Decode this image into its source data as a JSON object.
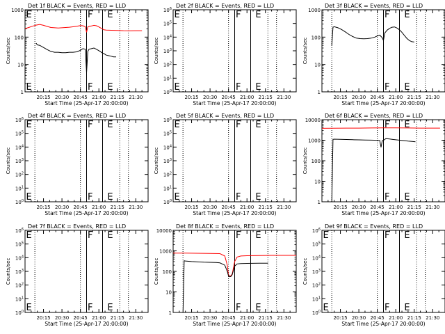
{
  "chart_data": [
    {
      "type": "line",
      "title": "Det 1f BLACK = Events, RED = LLD",
      "xlabel": "Start Time (25-Apr-17 20:00:00)",
      "ylabel": "Counts/sec",
      "log_y": true,
      "xlim_minutes": [
        0,
        100
      ],
      "ylim": [
        1,
        1000
      ],
      "y_ticks": [
        "1",
        "10",
        "100",
        "1000"
      ],
      "x_ticks": [
        "20:15",
        "20:30",
        "20:45",
        "21:00",
        "21:15",
        "21:30"
      ],
      "markers": [
        {
          "label": "E",
          "minute": 0
        },
        {
          "label": "F",
          "minute": 50
        },
        {
          "label": "E",
          "minute": 66
        }
      ],
      "dotted_lines_minutes": [
        8,
        45,
        77,
        84
      ],
      "solid_lines_minutes": [
        50,
        63
      ],
      "series": [
        {
          "color": "#ff0000",
          "t": [
            0,
            3,
            6,
            9,
            12,
            15,
            18,
            21,
            24,
            27,
            30,
            33,
            36,
            39,
            42,
            45,
            47,
            49,
            50,
            51,
            52,
            54,
            56,
            58,
            60,
            62,
            63,
            64,
            66,
            70,
            75,
            80,
            85,
            90,
            95
          ],
          "values": [
            205,
            225,
            250,
            275,
            290,
            270,
            245,
            225,
            220,
            215,
            220,
            225,
            230,
            238,
            248,
            265,
            260,
            240,
            150,
            235,
            245,
            255,
            270,
            260,
            235,
            210,
            200,
            185,
            180,
            178,
            176,
            172,
            170,
            172,
            172
          ]
        },
        {
          "color": "#000000",
          "t": [
            9,
            10,
            12,
            15,
            18,
            21,
            24,
            27,
            30,
            33,
            36,
            39,
            42,
            45,
            47,
            49,
            50,
            51,
            52,
            54,
            56,
            58,
            60,
            62,
            63,
            64,
            66,
            68,
            70,
            72,
            74
          ],
          "values": [
            60,
            52,
            50,
            42,
            35,
            30,
            28,
            28,
            27,
            27,
            28,
            28,
            29,
            33,
            38,
            36,
            5,
            30,
            36,
            38,
            40,
            36,
            32,
            28,
            26,
            25,
            22,
            21,
            20,
            19,
            19
          ]
        }
      ]
    },
    {
      "type": "line",
      "title": "Det 2f BLACK = Events, RED = LLD",
      "xlabel": "Start Time (25-Apr-17 20:00:00)",
      "ylabel": "Counts/sec",
      "log_y": true,
      "xlim_minutes": [
        0,
        100
      ],
      "ylim_exp": [
        0,
        6
      ],
      "y_ticks_exp": [
        "0",
        "1",
        "2",
        "3",
        "4",
        "5",
        "6"
      ],
      "x_ticks": [
        "20:15",
        "20:30",
        "20:45",
        "21:00",
        "21:15",
        "21:30"
      ],
      "markers": [
        {
          "label": "E",
          "minute": 0
        },
        {
          "label": "F",
          "minute": 50
        },
        {
          "label": "E",
          "minute": 66
        }
      ],
      "dotted_lines_minutes": [
        8,
        45,
        77,
        84
      ],
      "solid_lines_minutes": [
        50,
        63
      ],
      "series": []
    },
    {
      "type": "line",
      "title": "Det 3f BLACK = Events, RED = LLD",
      "xlabel": "Start Time (25-Apr-17 20:00:00)",
      "ylabel": "Counts/sec",
      "log_y": true,
      "xlim_minutes": [
        0,
        100
      ],
      "ylim": [
        1,
        1000
      ],
      "y_ticks": [
        "1",
        "10",
        "100",
        "1000"
      ],
      "x_ticks": [
        "20:15",
        "20:30",
        "20:45",
        "21:00",
        "21:15",
        "21:30"
      ],
      "markers": [
        {
          "label": "F",
          "minute": 50
        },
        {
          "label": "E",
          "minute": 66
        }
      ],
      "dotted_lines_minutes": [
        8,
        45,
        77,
        84
      ],
      "solid_lines_minutes": [
        50,
        63
      ],
      "series": [
        {
          "color": "#000000",
          "t": [
            8,
            9,
            10,
            13,
            16,
            19,
            22,
            25,
            28,
            31,
            34,
            37,
            40,
            43,
            45,
            47,
            49,
            50,
            51,
            53,
            55,
            57,
            59,
            61,
            63,
            65,
            67,
            69,
            71,
            73,
            75
          ],
          "values": [
            50,
            230,
            240,
            220,
            190,
            155,
            125,
            105,
            92,
            88,
            87,
            88,
            92,
            100,
            110,
            118,
            95,
            75,
            140,
            180,
            210,
            230,
            235,
            215,
            185,
            150,
            115,
            90,
            75,
            68,
            66
          ]
        }
      ]
    },
    {
      "type": "line",
      "title": "Det 4f BLACK = Events, RED = LLD",
      "xlabel": "Start Time (25-Apr-17 20:00:00)",
      "ylabel": "Counts/sec",
      "log_y": true,
      "xlim_minutes": [
        0,
        100
      ],
      "ylim_exp": [
        0,
        6
      ],
      "y_ticks_exp": [
        "0",
        "1",
        "2",
        "3",
        "4",
        "5",
        "6"
      ],
      "x_ticks": [
        "20:15",
        "20:30",
        "20:45",
        "21:00",
        "21:15",
        "21:30"
      ],
      "markers": [
        {
          "label": "E",
          "minute": 0
        },
        {
          "label": "F",
          "minute": 50
        },
        {
          "label": "E",
          "minute": 66
        }
      ],
      "dotted_lines_minutes": [
        8,
        45,
        77,
        84
      ],
      "solid_lines_minutes": [
        50,
        63
      ],
      "series": []
    },
    {
      "type": "line",
      "title": "Det 5f BLACK = Events, RED = LLD",
      "xlabel": "Start Time (25-Apr-17 20:00:00)",
      "ylabel": "Counts/sec",
      "log_y": true,
      "xlim_minutes": [
        0,
        100
      ],
      "ylim_exp": [
        0,
        6
      ],
      "y_ticks_exp": [
        "0",
        "1",
        "2",
        "3",
        "4",
        "5",
        "6"
      ],
      "x_ticks": [
        "20:15",
        "20:30",
        "20:45",
        "21:00",
        "21:15",
        "21:30"
      ],
      "markers": [
        {
          "label": "E",
          "minute": 0
        },
        {
          "label": "F",
          "minute": 50
        },
        {
          "label": "E",
          "minute": 66
        }
      ],
      "dotted_lines_minutes": [
        8,
        45,
        77,
        84
      ],
      "solid_lines_minutes": [
        50,
        63
      ],
      "series": []
    },
    {
      "type": "line",
      "title": "Det 6f BLACK = Events, RED = LLD",
      "xlabel": "Start Time (25-Apr-17 20:00:00)",
      "ylabel": "Counts/sec",
      "log_y": true,
      "xlim_minutes": [
        0,
        100
      ],
      "ylim": [
        1,
        10000
      ],
      "y_ticks": [
        "1",
        "10",
        "100",
        "1000",
        "10000"
      ],
      "x_ticks": [
        "20:15",
        "20:30",
        "20:45",
        "21:00",
        "21:15",
        "21:30"
      ],
      "markers": [
        {
          "label": "F",
          "minute": 50
        },
        {
          "label": "E",
          "minute": 66
        }
      ],
      "dotted_lines_minutes": [
        8,
        45,
        77,
        84
      ],
      "solid_lines_minutes": [
        50,
        63
      ],
      "series": [
        {
          "color": "#ff0000",
          "t": [
            0,
            10,
            20,
            30,
            40,
            50,
            60,
            70,
            80,
            90,
            96
          ],
          "values": [
            3800,
            3850,
            3900,
            3900,
            3950,
            4000,
            4000,
            3950,
            3900,
            3900,
            3900
          ]
        },
        {
          "color": "#000000",
          "t": [
            8,
            9,
            10,
            15,
            20,
            25,
            30,
            35,
            40,
            45,
            47,
            48,
            49,
            50,
            51,
            52,
            55,
            58,
            62,
            66,
            70,
            74,
            76
          ],
          "values": [
            1,
            1100,
            1120,
            1100,
            1080,
            1060,
            1040,
            1020,
            1010,
            990,
            960,
            450,
            940,
            1000,
            1080,
            1200,
            1150,
            1080,
            1020,
            960,
            900,
            860,
            840
          ]
        }
      ]
    },
    {
      "type": "line",
      "title": "Det 7f BLACK = Events, RED = LLD",
      "xlabel": "Start Time (25-Apr-17 20:00:00)",
      "ylabel": "Counts/sec",
      "log_y": true,
      "xlim_minutes": [
        0,
        100
      ],
      "ylim_exp": [
        0,
        6
      ],
      "y_ticks_exp": [
        "0",
        "1",
        "2",
        "3",
        "4",
        "5",
        "6"
      ],
      "x_ticks": [
        "20:15",
        "20:30",
        "20:45",
        "21:00",
        "21:15",
        "21:30"
      ],
      "markers": [
        {
          "label": "E",
          "minute": 0
        },
        {
          "label": "F",
          "minute": 50
        },
        {
          "label": "E",
          "minute": 66
        }
      ],
      "dotted_lines_minutes": [
        8,
        45,
        77,
        84
      ],
      "solid_lines_minutes": [
        50,
        63
      ],
      "series": []
    },
    {
      "type": "line",
      "title": "Det 8f BLACK = Events, RED = LLD",
      "xlabel": "Start Time (25-Apr-17 20:00:00)",
      "ylabel": "Counts/sec",
      "log_y": true,
      "xlim_minutes": [
        0,
        100
      ],
      "ylim": [
        1,
        10000
      ],
      "y_ticks": [
        "1",
        "10",
        "100",
        "1000",
        "10000"
      ],
      "x_ticks": [
        "20:15",
        "20:30",
        "20:45",
        "21:00",
        "21:15",
        "21:30"
      ],
      "markers": [
        {
          "label": "F",
          "minute": 50
        },
        {
          "label": "E",
          "minute": 66
        }
      ],
      "dotted_lines_minutes": [
        8,
        45,
        77,
        84
      ],
      "solid_lines_minutes": [
        50,
        63
      ],
      "series": [
        {
          "color": "#ff0000",
          "t": [
            0,
            10,
            20,
            30,
            38,
            42,
            44,
            45,
            46,
            47,
            48,
            50,
            52,
            55,
            60,
            70,
            80,
            90,
            100
          ],
          "values": [
            780,
            770,
            760,
            750,
            730,
            560,
            200,
            65,
            60,
            62,
            75,
            300,
            500,
            560,
            580,
            590,
            600,
            600,
            600
          ]
        },
        {
          "color": "#000000",
          "t": [
            8,
            9,
            10,
            15,
            20,
            25,
            30,
            35,
            38,
            42,
            44,
            45,
            46,
            47,
            48,
            50,
            52,
            55,
            60,
            70,
            77
          ],
          "values": [
            1,
            330,
            320,
            300,
            290,
            280,
            275,
            270,
            260,
            200,
            100,
            60,
            55,
            57,
            70,
            180,
            230,
            240,
            245,
            250,
            250
          ]
        }
      ]
    },
    {
      "type": "line",
      "title": "Det 9f BLACK = Events, RED = LLD",
      "xlabel": "Start Time (25-Apr-17 20:00:00)",
      "ylabel": "Counts/sec",
      "log_y": true,
      "xlim_minutes": [
        0,
        100
      ],
      "ylim_exp": [
        0,
        6
      ],
      "y_ticks_exp": [
        "0",
        "1",
        "2",
        "3",
        "4",
        "5",
        "6"
      ],
      "x_ticks": [
        "20:15",
        "20:30",
        "20:45",
        "21:00",
        "21:15",
        "21:30"
      ],
      "markers": [
        {
          "label": "E",
          "minute": 0
        },
        {
          "label": "F",
          "minute": 50
        },
        {
          "label": "E",
          "minute": 66
        }
      ],
      "dotted_lines_minutes": [
        8,
        45,
        77,
        84
      ],
      "solid_lines_minutes": [
        50,
        63
      ],
      "series": []
    }
  ]
}
